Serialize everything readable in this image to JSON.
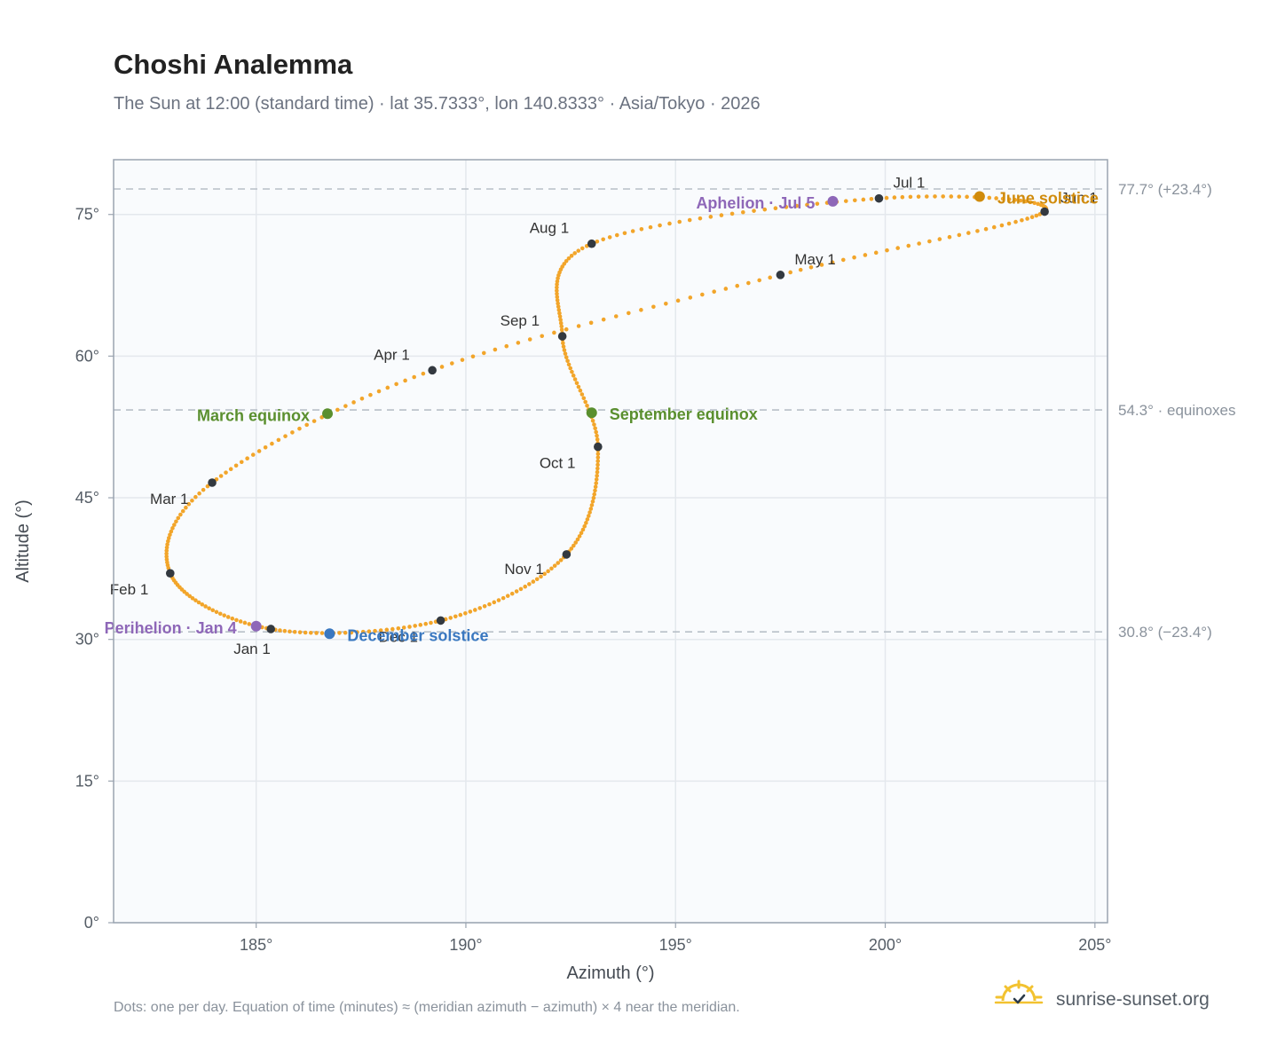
{
  "title": "Choshi Analemma",
  "subtitle": "The Sun at 12:00 (standard time) · lat 35.7333°, lon 140.8333° · Asia/Tokyo · 2026",
  "footnote": "Dots: one per day. Equation of time (minutes) ≈ (meridian azimuth − azimuth) × 4 near the meridian.",
  "brand": {
    "name": "sunrise-sunset.org",
    "logo_icon": "sun-check-icon"
  },
  "colors": {
    "curve": "#f2a52a",
    "month_marker": "#333940",
    "equinox": "#5a8f2e",
    "june_solstice": "#d08b0c",
    "december_solstice": "#3a78c0",
    "perihelion_aphelion": "#8e67b8",
    "reference_line": "#b8c0c8",
    "plot_background": "#f9fbfd",
    "grid": "#e4e8ed",
    "frame": "#9aa4b0"
  },
  "chart_data": {
    "type": "scatter",
    "xlabel": "Azimuth (°)",
    "ylabel": "Altitude (°)",
    "xlim": [
      181.6,
      205.3
    ],
    "ylim": [
      0,
      80.8
    ],
    "x_ticks": [
      {
        "value": 185,
        "label": "185°"
      },
      {
        "value": 190,
        "label": "190°"
      },
      {
        "value": 195,
        "label": "195°"
      },
      {
        "value": 200,
        "label": "200°"
      },
      {
        "value": 205,
        "label": "205°"
      }
    ],
    "y_ticks": [
      {
        "value": 0,
        "label": "0°"
      },
      {
        "value": 15,
        "label": "15°"
      },
      {
        "value": 30,
        "label": "30°"
      },
      {
        "value": 45,
        "label": "45°"
      },
      {
        "value": 60,
        "label": "60°"
      },
      {
        "value": 75,
        "label": "75°"
      }
    ],
    "grid": true,
    "reference_lines": [
      {
        "altitude": 77.7,
        "label": "77.7° (+23.4°)"
      },
      {
        "altitude": 54.3,
        "label": "54.3° · equinoxes"
      },
      {
        "altitude": 30.8,
        "label": "30.8° (−23.4°)"
      }
    ],
    "daily_points": "one per day",
    "month_points": [
      {
        "label": "Jan 1",
        "azimuth": 185.35,
        "altitude": 31.1
      },
      {
        "label": "Feb 1",
        "azimuth": 182.95,
        "altitude": 37.0
      },
      {
        "label": "Mar 1",
        "azimuth": 183.95,
        "altitude": 46.6
      },
      {
        "label": "Apr 1",
        "azimuth": 189.2,
        "altitude": 58.5
      },
      {
        "label": "May 1",
        "azimuth": 197.5,
        "altitude": 68.6
      },
      {
        "label": "Jun 1",
        "azimuth": 203.8,
        "altitude": 75.3
      },
      {
        "label": "Jul 1",
        "azimuth": 199.85,
        "altitude": 76.7
      },
      {
        "label": "Aug 1",
        "azimuth": 193.0,
        "altitude": 71.9
      },
      {
        "label": "Sep 1",
        "azimuth": 192.3,
        "altitude": 62.1
      },
      {
        "label": "Oct 1",
        "azimuth": 193.15,
        "altitude": 50.4
      },
      {
        "label": "Nov 1",
        "azimuth": 192.4,
        "altitude": 39.0
      },
      {
        "label": "Dec 1",
        "azimuth": 189.4,
        "altitude": 32.0
      }
    ],
    "events": [
      {
        "label": "Perihelion · Jan 4",
        "azimuth": 185.0,
        "altitude": 31.4,
        "kind": "perihelion"
      },
      {
        "label": "March equinox",
        "azimuth": 186.7,
        "altitude": 53.9,
        "kind": "equinox"
      },
      {
        "label": "June solstice",
        "azimuth": 202.25,
        "altitude": 76.9,
        "kind": "june_solstice"
      },
      {
        "label": "Aphelion · Jul 5",
        "azimuth": 198.75,
        "altitude": 76.4,
        "kind": "aphelion"
      },
      {
        "label": "September equinox",
        "azimuth": 193.0,
        "altitude": 54.0,
        "kind": "equinox"
      },
      {
        "label": "December solstice",
        "azimuth": 186.75,
        "altitude": 30.6,
        "kind": "december_solstice"
      }
    ]
  }
}
